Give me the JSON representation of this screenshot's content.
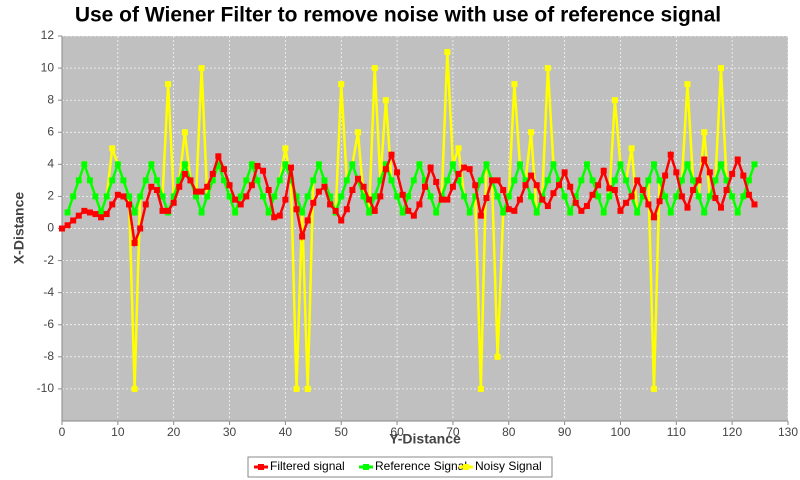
{
  "chart_data": {
    "type": "line",
    "title": "Use of Wiener Filter to remove noise with use of reference signal",
    "x_label": "Y-Distance",
    "y_label": "X-Distance",
    "x": [
      0,
      1,
      2,
      3,
      4,
      5,
      6,
      7,
      8,
      9,
      10,
      11,
      12,
      13,
      14,
      15,
      16,
      17,
      18,
      19,
      20,
      21,
      22,
      23,
      24,
      25,
      26,
      27,
      28,
      29,
      30,
      31,
      32,
      33,
      34,
      35,
      36,
      37,
      38,
      39,
      40,
      41,
      42,
      43,
      44,
      45,
      46,
      47,
      48,
      49,
      50,
      51,
      52,
      53,
      54,
      55,
      56,
      57,
      58,
      59,
      60,
      61,
      62,
      63,
      64,
      65,
      66,
      67,
      68,
      69,
      70,
      71,
      72,
      73,
      74,
      75,
      76,
      77,
      78,
      79,
      80,
      81,
      82,
      83,
      84,
      85,
      86,
      87,
      88,
      89,
      90,
      91,
      92,
      93,
      94,
      95,
      96,
      97,
      98,
      99,
      100,
      101,
      102,
      103,
      104,
      105,
      106,
      107,
      108,
      109,
      110,
      111,
      112,
      113,
      114,
      115,
      116,
      117,
      118,
      119,
      120,
      121,
      122,
      123,
      124
    ],
    "series": [
      {
        "name": "Filtered signal",
        "color": "#ff0000",
        "values": [
          0,
          0.2,
          0.5,
          0.8,
          1.1,
          1.0,
          0.9,
          0.7,
          0.9,
          1.5,
          2.1,
          2.0,
          1.5,
          -0.9,
          0.0,
          1.5,
          2.6,
          2.4,
          1.1,
          1.1,
          1.6,
          2.6,
          3.4,
          3.0,
          2.3,
          2.3,
          2.6,
          3.4,
          4.5,
          3.7,
          2.7,
          1.8,
          1.5,
          2.0,
          2.7,
          3.9,
          3.6,
          2.4,
          0.7,
          0.8,
          1.8,
          3.8,
          1.2,
          -0.5,
          0.5,
          1.6,
          2.3,
          2.6,
          1.5,
          1.1,
          0.5,
          1.2,
          2.4,
          3.1,
          2.6,
          1.8,
          1.1,
          2.0,
          3.7,
          4.6,
          3.5,
          2.1,
          1.1,
          0.8,
          1.5,
          2.6,
          3.8,
          2.9,
          1.8,
          1.8,
          2.6,
          3.4,
          3.8,
          3.7,
          2.7,
          0.8,
          1.9,
          3.0,
          3.0,
          2.4,
          1.2,
          1.1,
          1.8,
          2.7,
          3.3,
          2.7,
          1.8,
          1.4,
          2.2,
          2.7,
          3.5,
          2.6,
          1.6,
          1.1,
          1.4,
          2.1,
          2.7,
          3.6,
          2.5,
          2.4,
          1.1,
          1.6,
          2.0,
          3.0,
          2.4,
          1.5,
          0.7,
          1.7,
          3.3,
          4.6,
          3.5,
          2.0,
          1.3,
          2.4,
          3.0,
          4.3,
          3.5,
          1.9,
          1.3,
          2.4,
          3.4,
          4.3,
          3.3,
          2.1,
          1.5
        ]
      },
      {
        "name": "Reference Signal",
        "color": "#00ff00",
        "values": [
          null,
          1,
          2,
          3,
          4,
          3,
          2,
          1,
          2,
          3,
          4,
          3,
          2,
          1,
          2,
          3,
          4,
          3,
          2,
          1,
          2,
          3,
          4,
          3,
          2,
          1,
          2,
          3,
          4,
          3,
          2,
          1,
          2,
          3,
          4,
          3,
          2,
          1,
          2,
          3,
          4,
          3,
          2,
          1,
          2,
          3,
          4,
          3,
          2,
          1,
          2,
          3,
          4,
          3,
          2,
          1,
          2,
          3,
          4,
          3,
          2,
          1,
          2,
          3,
          4,
          3,
          2,
          1,
          2,
          3,
          4,
          3,
          2,
          1,
          2,
          3,
          4,
          3,
          2,
          1,
          2,
          3,
          4,
          3,
          2,
          1,
          2,
          3,
          4,
          3,
          2,
          1,
          2,
          3,
          4,
          3,
          2,
          1,
          2,
          3,
          4,
          3,
          2,
          1,
          2,
          3,
          4,
          3,
          2,
          1,
          2,
          3,
          4,
          3,
          2,
          1,
          2,
          3,
          4,
          3,
          2,
          1,
          2,
          3,
          4
        ]
      },
      {
        "name": "Noisy Signal",
        "color": "#ffff00",
        "values": [
          null,
          1,
          2,
          3,
          4,
          3,
          2,
          1,
          2,
          5,
          4,
          3,
          2,
          -10,
          2,
          3,
          4,
          3,
          2,
          9,
          2,
          3,
          6,
          3,
          2,
          10,
          2,
          3,
          4,
          3,
          2,
          1,
          2,
          3,
          4,
          3,
          2,
          1,
          2,
          3,
          5,
          3,
          -10,
          1,
          -10,
          3,
          4,
          3,
          2,
          1,
          9,
          3,
          4,
          6,
          2,
          1,
          10,
          3,
          8,
          3,
          2,
          1,
          2,
          3,
          4,
          3,
          2,
          1,
          2,
          11,
          4,
          5,
          2,
          1,
          2,
          -10,
          4,
          3,
          -8,
          1,
          2,
          9,
          4,
          3,
          6,
          1,
          2,
          10,
          4,
          3,
          2,
          1,
          2,
          3,
          4,
          3,
          2,
          1,
          2,
          8,
          4,
          3,
          5,
          1,
          2,
          3,
          -10,
          3,
          2,
          1,
          2,
          3,
          9,
          3,
          2,
          6,
          2,
          3,
          10,
          3,
          2,
          1,
          2,
          3,
          4
        ]
      }
    ],
    "xlim": [
      0,
      130
    ],
    "xticks": [
      0,
      10,
      20,
      30,
      40,
      50,
      60,
      70,
      80,
      90,
      100,
      110,
      120,
      130
    ],
    "ylim": [
      -12,
      12
    ],
    "yticks": [
      -10,
      -8,
      -6,
      -4,
      -2,
      0,
      2,
      4,
      6,
      8,
      10,
      12
    ],
    "grid": true,
    "legend": "bottom"
  }
}
